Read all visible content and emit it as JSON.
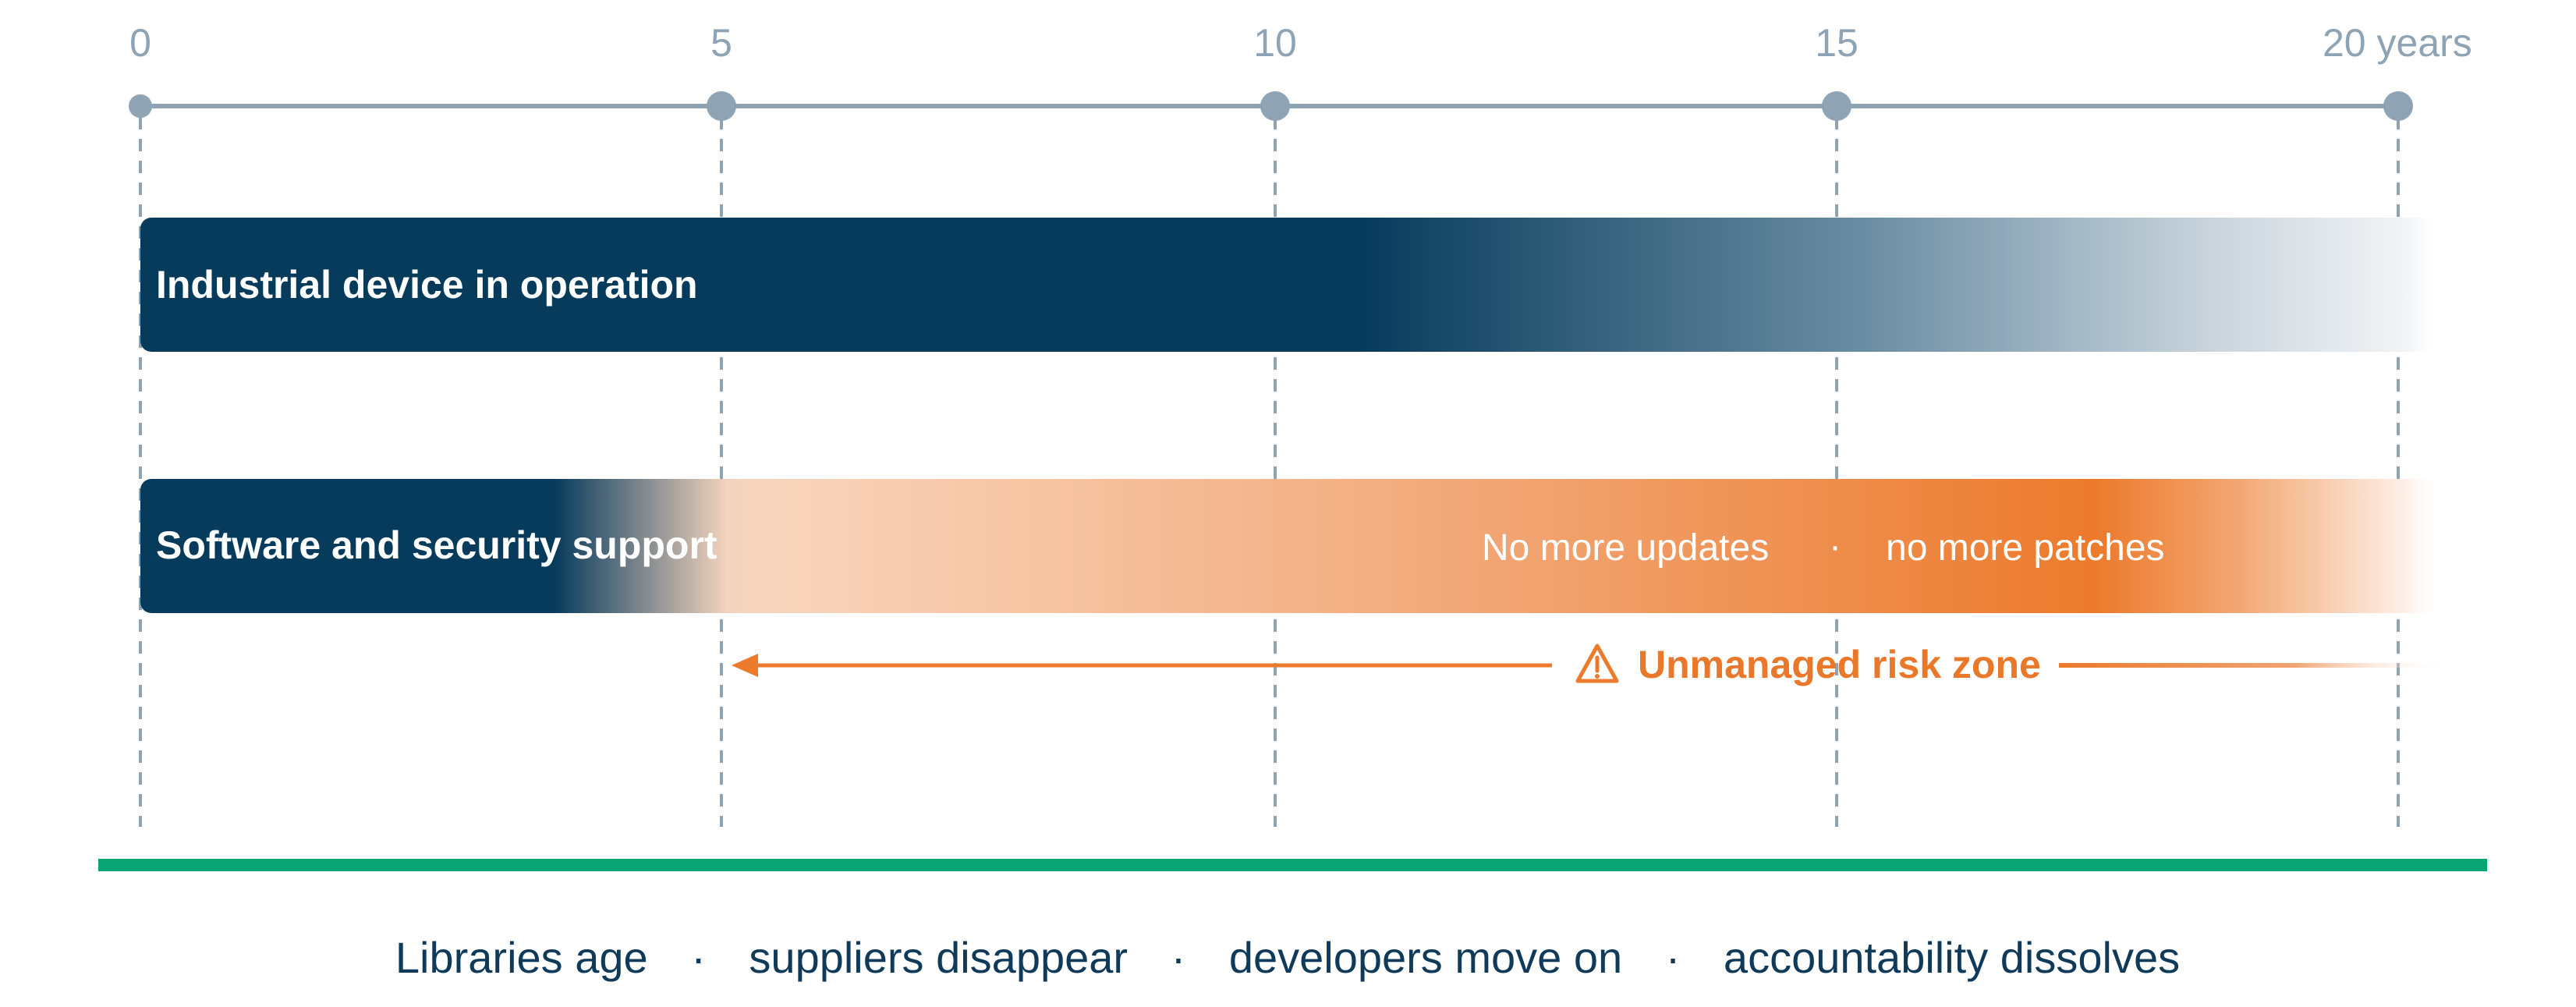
{
  "timeline": {
    "ticks": [
      {
        "value": 0,
        "label": "0"
      },
      {
        "value": 5,
        "label": "5"
      },
      {
        "value": 10,
        "label": "10"
      },
      {
        "value": 15,
        "label": "15"
      },
      {
        "value": 20,
        "label": "20 years"
      }
    ],
    "range": [
      0,
      20
    ]
  },
  "bars": {
    "device": {
      "label": "Industrial device in operation",
      "start": 0,
      "end": 20
    },
    "support": {
      "label": "Software and security support",
      "start": 0,
      "end": 20
    },
    "notes": {
      "updates": "No more updates",
      "separator": "·",
      "patches": "no more patches"
    }
  },
  "risk_zone": {
    "label": "Unmanaged risk zone",
    "start": 5,
    "end": 20
  },
  "footer": {
    "items": [
      "Libraries age",
      "suppliers disappear",
      "developers move on",
      "accountability dissolves"
    ],
    "separator": "·"
  },
  "colors": {
    "navy": "#073b5c",
    "orange": "#ec7a2c",
    "peach": "#f8d2b8",
    "axis": "#8ea3b3",
    "green": "#0aa574",
    "footer_text": "#0f3a5a"
  }
}
